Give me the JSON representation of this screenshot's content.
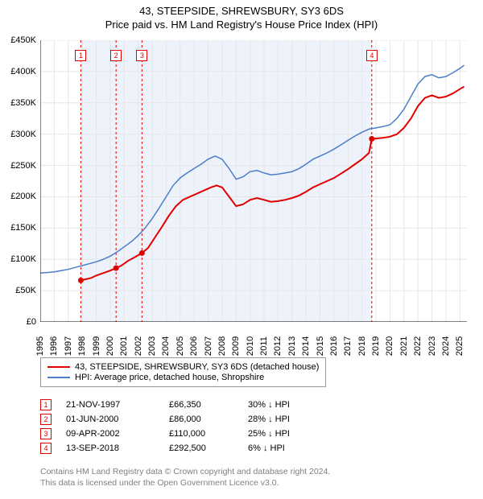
{
  "header": {
    "title": "43, STEEPSIDE, SHREWSBURY, SY3 6DS",
    "subtitle": "Price paid vs. HM Land Registry's House Price Index (HPI)"
  },
  "chart": {
    "type": "line",
    "background_color": "#ffffff",
    "grid_color": "#e6e6e6",
    "axis_color": "#000000",
    "x_range": [
      1995,
      2025.5
    ],
    "y_range": [
      0,
      450000
    ],
    "y_ticks": [
      0,
      50000,
      100000,
      150000,
      200000,
      250000,
      300000,
      350000,
      400000,
      450000
    ],
    "y_tick_labels": [
      "£0",
      "£50K",
      "£100K",
      "£150K",
      "£200K",
      "£250K",
      "£300K",
      "£350K",
      "£400K",
      "£450K"
    ],
    "x_ticks": [
      1995,
      1996,
      1997,
      1998,
      1999,
      2000,
      2001,
      2002,
      2003,
      2004,
      2005,
      2006,
      2007,
      2008,
      2009,
      2010,
      2011,
      2012,
      2013,
      2014,
      2015,
      2016,
      2017,
      2018,
      2019,
      2020,
      2021,
      2022,
      2023,
      2024,
      2025
    ],
    "series": [
      {
        "name": "43, STEEPSIDE, SHREWSBURY, SY3 6DS (detached house)",
        "color": "#e10000",
        "width": 2,
        "points": [
          [
            1997.9,
            66350
          ],
          [
            1998.2,
            68000
          ],
          [
            1998.6,
            70000
          ],
          [
            1999.0,
            74000
          ],
          [
            1999.5,
            78000
          ],
          [
            2000.0,
            82000
          ],
          [
            2000.42,
            86000
          ],
          [
            2000.8,
            90000
          ],
          [
            2001.3,
            98000
          ],
          [
            2001.8,
            104000
          ],
          [
            2002.27,
            110000
          ],
          [
            2002.7,
            118000
          ],
          [
            2003.2,
            135000
          ],
          [
            2003.7,
            152000
          ],
          [
            2004.2,
            170000
          ],
          [
            2004.7,
            185000
          ],
          [
            2005.2,
            195000
          ],
          [
            2005.7,
            200000
          ],
          [
            2006.2,
            205000
          ],
          [
            2006.7,
            210000
          ],
          [
            2007.2,
            215000
          ],
          [
            2007.6,
            218000
          ],
          [
            2008.0,
            215000
          ],
          [
            2008.5,
            200000
          ],
          [
            2009.0,
            185000
          ],
          [
            2009.5,
            188000
          ],
          [
            2010.0,
            195000
          ],
          [
            2010.5,
            198000
          ],
          [
            2011.0,
            195000
          ],
          [
            2011.5,
            192000
          ],
          [
            2012.0,
            193000
          ],
          [
            2012.5,
            195000
          ],
          [
            2013.0,
            198000
          ],
          [
            2013.5,
            202000
          ],
          [
            2014.0,
            208000
          ],
          [
            2014.5,
            215000
          ],
          [
            2015.0,
            220000
          ],
          [
            2015.5,
            225000
          ],
          [
            2016.0,
            230000
          ],
          [
            2016.5,
            237000
          ],
          [
            2017.0,
            244000
          ],
          [
            2017.5,
            252000
          ],
          [
            2018.0,
            260000
          ],
          [
            2018.5,
            270000
          ],
          [
            2018.7,
            292500
          ],
          [
            2019.0,
            293000
          ],
          [
            2019.5,
            294000
          ],
          [
            2020.0,
            296000
          ],
          [
            2020.5,
            300000
          ],
          [
            2021.0,
            310000
          ],
          [
            2021.5,
            325000
          ],
          [
            2022.0,
            345000
          ],
          [
            2022.5,
            358000
          ],
          [
            2023.0,
            362000
          ],
          [
            2023.5,
            358000
          ],
          [
            2024.0,
            360000
          ],
          [
            2024.5,
            365000
          ],
          [
            2025.0,
            372000
          ],
          [
            2025.3,
            376000
          ]
        ]
      },
      {
        "name": "HPI: Average price, detached house, Shropshire",
        "color": "#4a7ec8",
        "width": 1.5,
        "points": [
          [
            1995.0,
            78000
          ],
          [
            1995.5,
            79000
          ],
          [
            1996.0,
            80000
          ],
          [
            1996.5,
            82000
          ],
          [
            1997.0,
            84000
          ],
          [
            1997.5,
            87000
          ],
          [
            1998.0,
            90000
          ],
          [
            1998.5,
            93000
          ],
          [
            1999.0,
            96000
          ],
          [
            1999.5,
            100000
          ],
          [
            2000.0,
            105000
          ],
          [
            2000.5,
            112000
          ],
          [
            2001.0,
            120000
          ],
          [
            2001.5,
            128000
          ],
          [
            2002.0,
            138000
          ],
          [
            2002.5,
            150000
          ],
          [
            2003.0,
            165000
          ],
          [
            2003.5,
            182000
          ],
          [
            2004.0,
            200000
          ],
          [
            2004.5,
            218000
          ],
          [
            2005.0,
            230000
          ],
          [
            2005.5,
            238000
          ],
          [
            2006.0,
            245000
          ],
          [
            2006.5,
            252000
          ],
          [
            2007.0,
            260000
          ],
          [
            2007.5,
            265000
          ],
          [
            2008.0,
            260000
          ],
          [
            2008.5,
            245000
          ],
          [
            2009.0,
            228000
          ],
          [
            2009.5,
            232000
          ],
          [
            2010.0,
            240000
          ],
          [
            2010.5,
            242000
          ],
          [
            2011.0,
            238000
          ],
          [
            2011.5,
            235000
          ],
          [
            2012.0,
            236000
          ],
          [
            2012.5,
            238000
          ],
          [
            2013.0,
            240000
          ],
          [
            2013.5,
            245000
          ],
          [
            2014.0,
            252000
          ],
          [
            2014.5,
            260000
          ],
          [
            2015.0,
            265000
          ],
          [
            2015.5,
            270000
          ],
          [
            2016.0,
            276000
          ],
          [
            2016.5,
            283000
          ],
          [
            2017.0,
            290000
          ],
          [
            2017.5,
            297000
          ],
          [
            2018.0,
            303000
          ],
          [
            2018.5,
            308000
          ],
          [
            2019.0,
            310000
          ],
          [
            2019.5,
            312000
          ],
          [
            2020.0,
            315000
          ],
          [
            2020.5,
            325000
          ],
          [
            2021.0,
            340000
          ],
          [
            2021.5,
            360000
          ],
          [
            2022.0,
            380000
          ],
          [
            2022.5,
            392000
          ],
          [
            2023.0,
            395000
          ],
          [
            2023.5,
            390000
          ],
          [
            2024.0,
            392000
          ],
          [
            2024.5,
            398000
          ],
          [
            2025.0,
            405000
          ],
          [
            2025.3,
            410000
          ]
        ]
      }
    ],
    "shaded_ranges": [
      {
        "x0": 1997.9,
        "x1": 2000.42,
        "color": "#eef2fb"
      },
      {
        "x0": 2000.42,
        "x1": 2002.27,
        "color": "#eef2fb"
      },
      {
        "x0": 2002.27,
        "x1": 2018.7,
        "color": "#eef2fb"
      }
    ],
    "markers": [
      {
        "n": "1",
        "x": 1997.9,
        "date": "21-NOV-1997",
        "price": "£66,350",
        "diff": "30% ↓ HPI",
        "dash_color": "#e10000"
      },
      {
        "n": "2",
        "x": 2000.42,
        "date": "01-JUN-2000",
        "price": "£86,000",
        "diff": "28% ↓ HPI",
        "dash_color": "#e10000"
      },
      {
        "n": "3",
        "x": 2002.27,
        "date": "09-APR-2002",
        "price": "£110,000",
        "diff": "25% ↓ HPI",
        "dash_color": "#e10000"
      },
      {
        "n": "4",
        "x": 2018.7,
        "date": "13-SEP-2018",
        "price": "£292,500",
        "diff": "6% ↓ HPI",
        "dash_color": "#e10000"
      }
    ],
    "marker_y_top": 12,
    "marker_box_fill": "#ffffff",
    "marker_dot_color": "#e10000",
    "tick_label_fontsize": 11
  },
  "legend": {
    "items": [
      {
        "color": "#e10000",
        "label": "43, STEEPSIDE, SHREWSBURY, SY3 6DS (detached house)"
      },
      {
        "color": "#4a7ec8",
        "label": "HPI: Average price, detached house, Shropshire"
      }
    ]
  },
  "footer": {
    "line1": "Contains HM Land Registry data © Crown copyright and database right 2024.",
    "line2": "This data is licensed under the Open Government Licence v3.0."
  }
}
